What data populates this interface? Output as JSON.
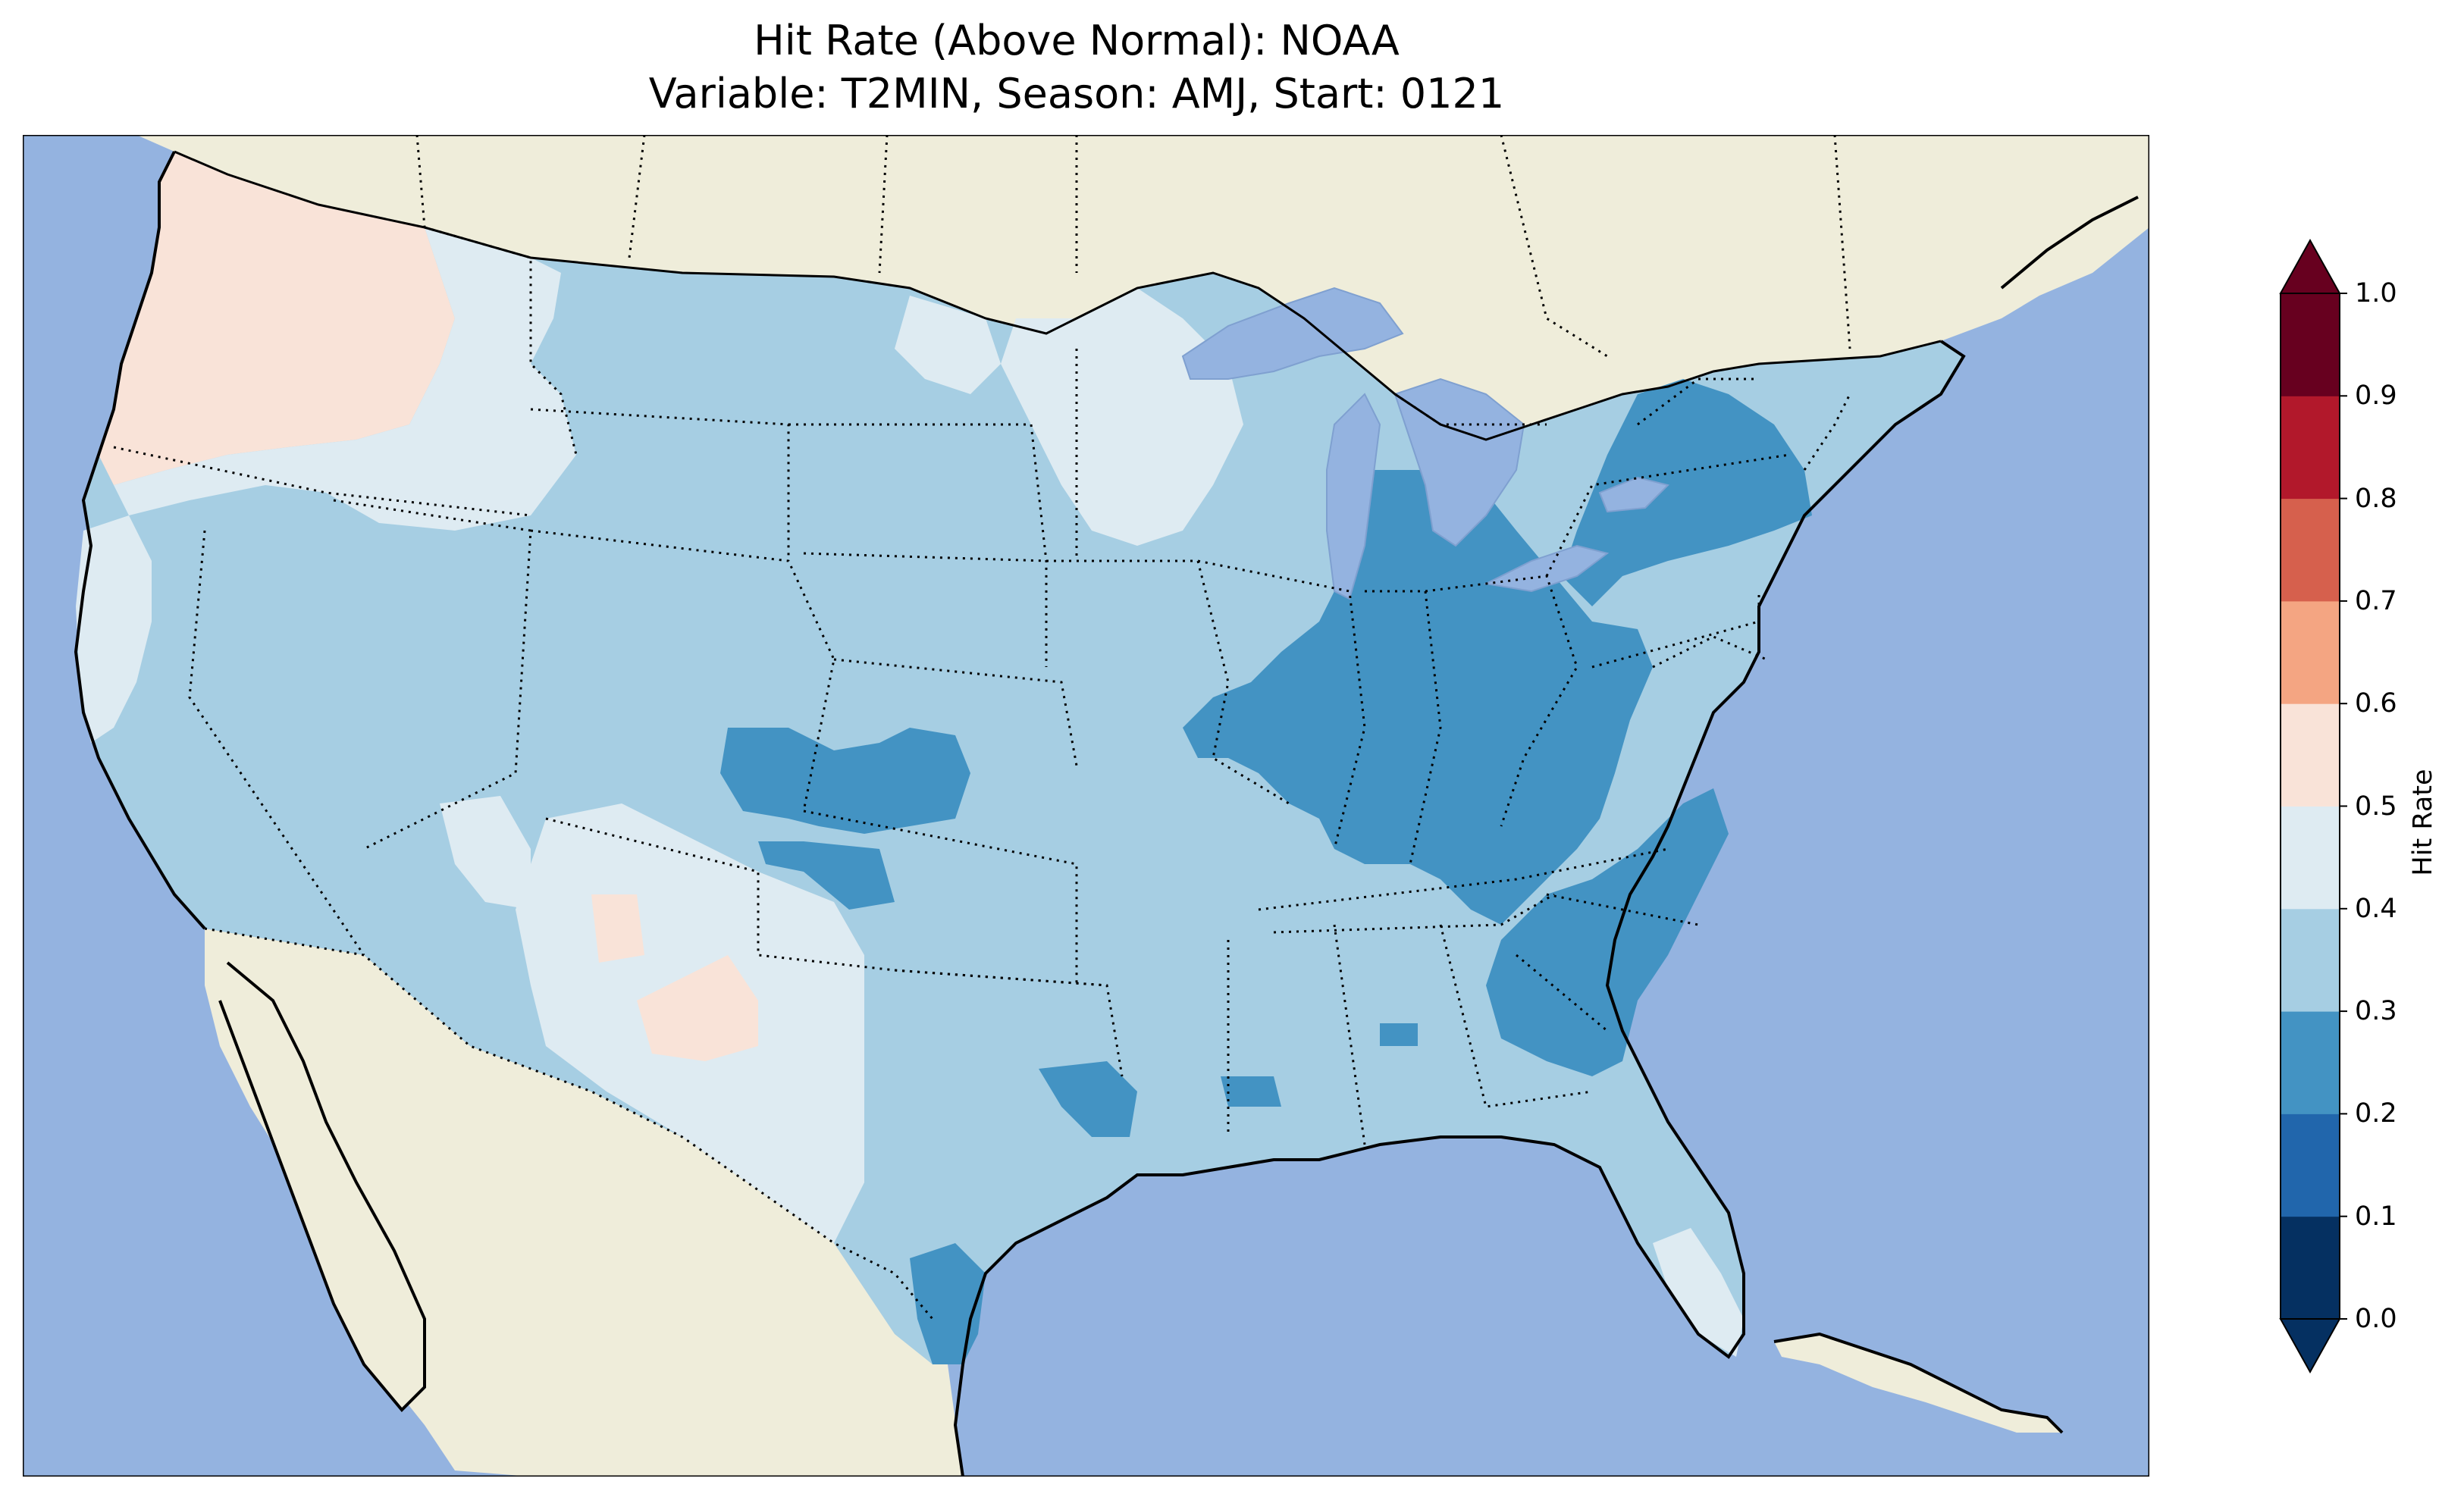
{
  "title": {
    "line1": "Hit Rate (Above Normal): NOAA",
    "line2": "Variable: T2MIN, Season: AMJ, Start: 0121"
  },
  "colorbar": {
    "label": "Hit Rate",
    "ticks": [
      "0.0",
      "0.1",
      "0.2",
      "0.3",
      "0.4",
      "0.5",
      "0.6",
      "0.7",
      "0.8",
      "0.9",
      "1.0"
    ],
    "bins": [
      {
        "range": [
          0.0,
          0.1
        ],
        "color": "#053061"
      },
      {
        "range": [
          0.1,
          0.2
        ],
        "color": "#2166ac"
      },
      {
        "range": [
          0.2,
          0.3
        ],
        "color": "#4393c3"
      },
      {
        "range": [
          0.3,
          0.4
        ],
        "color": "#a6cee3"
      },
      {
        "range": [
          0.4,
          0.5
        ],
        "color": "#deebf2"
      },
      {
        "range": [
          0.5,
          0.6
        ],
        "color": "#f9e3d8"
      },
      {
        "range": [
          0.6,
          0.7
        ],
        "color": "#f4a582"
      },
      {
        "range": [
          0.7,
          0.8
        ],
        "color": "#d6604d"
      },
      {
        "range": [
          0.8,
          0.9
        ],
        "color": "#b2182b"
      },
      {
        "range": [
          0.9,
          1.0
        ],
        "color": "#67001f"
      }
    ],
    "extend": "both"
  },
  "map_colors": {
    "ocean": "#94b3e0",
    "land": "#efedda",
    "lakes": "#94b3e0"
  },
  "regions": [
    {
      "name": "pacific-northwest",
      "hit_rate_bin": "0.5-0.6"
    },
    {
      "name": "northern-rockies",
      "hit_rate_bin": "0.4-0.5"
    },
    {
      "name": "great-basin",
      "hit_rate_bin": "0.3-0.4"
    },
    {
      "name": "upper-midwest",
      "hit_rate_bin": "0.4-0.5"
    },
    {
      "name": "ohio-valley",
      "hit_rate_bin": "0.2-0.3"
    },
    {
      "name": "southeast",
      "hit_rate_bin": "0.2-0.3"
    },
    {
      "name": "new-mexico-texas",
      "hit_rate_bin": "0.4-0.5"
    }
  ]
}
